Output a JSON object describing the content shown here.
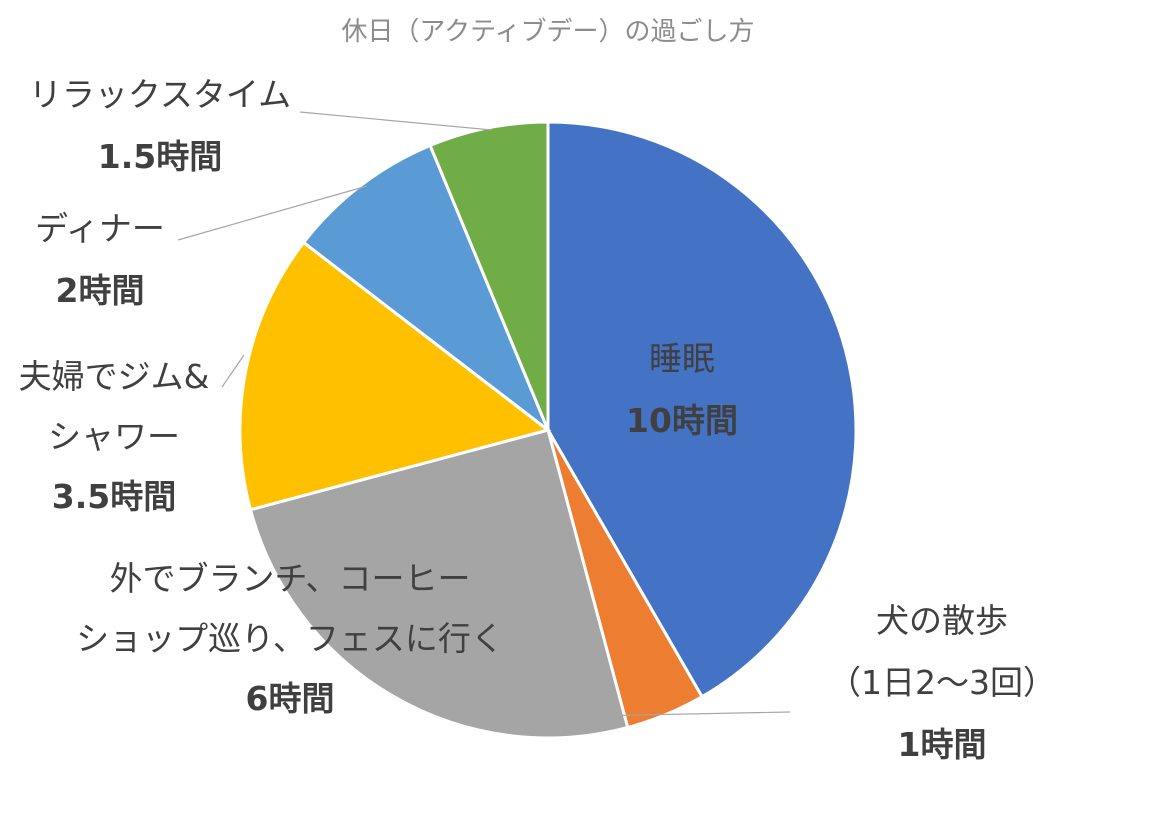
{
  "chart_data": {
    "type": "pie",
    "title": "休日（アクティブデー）の過ごし方",
    "unit": "時間",
    "slices": [
      {
        "label_lines": [
          "睡眠"
        ],
        "value": 10,
        "value_label": "10時間",
        "color": "#4472C4"
      },
      {
        "label_lines": [
          "犬の散歩",
          "（1日2〜3回）"
        ],
        "value": 1,
        "value_label": "1時間",
        "color": "#ED7D31"
      },
      {
        "label_lines": [
          "外でブランチ、コーヒー",
          "ショップ巡り、フェスに行く"
        ],
        "value": 6,
        "value_label": "6時間",
        "color": "#A5A5A5"
      },
      {
        "label_lines": [
          "夫婦でジム&",
          "シャワー"
        ],
        "value": 3.5,
        "value_label": "3.5時間",
        "color": "#FFC000"
      },
      {
        "label_lines": [
          "ディナー"
        ],
        "value": 2,
        "value_label": "2時間",
        "color": "#5B9BD5"
      },
      {
        "label_lines": [
          "リラックスタイム"
        ],
        "value": 1.5,
        "value_label": "1.5時間",
        "color": "#70AD47"
      }
    ],
    "legend": "none",
    "start_angle": "12 o'clock, clockwise"
  }
}
